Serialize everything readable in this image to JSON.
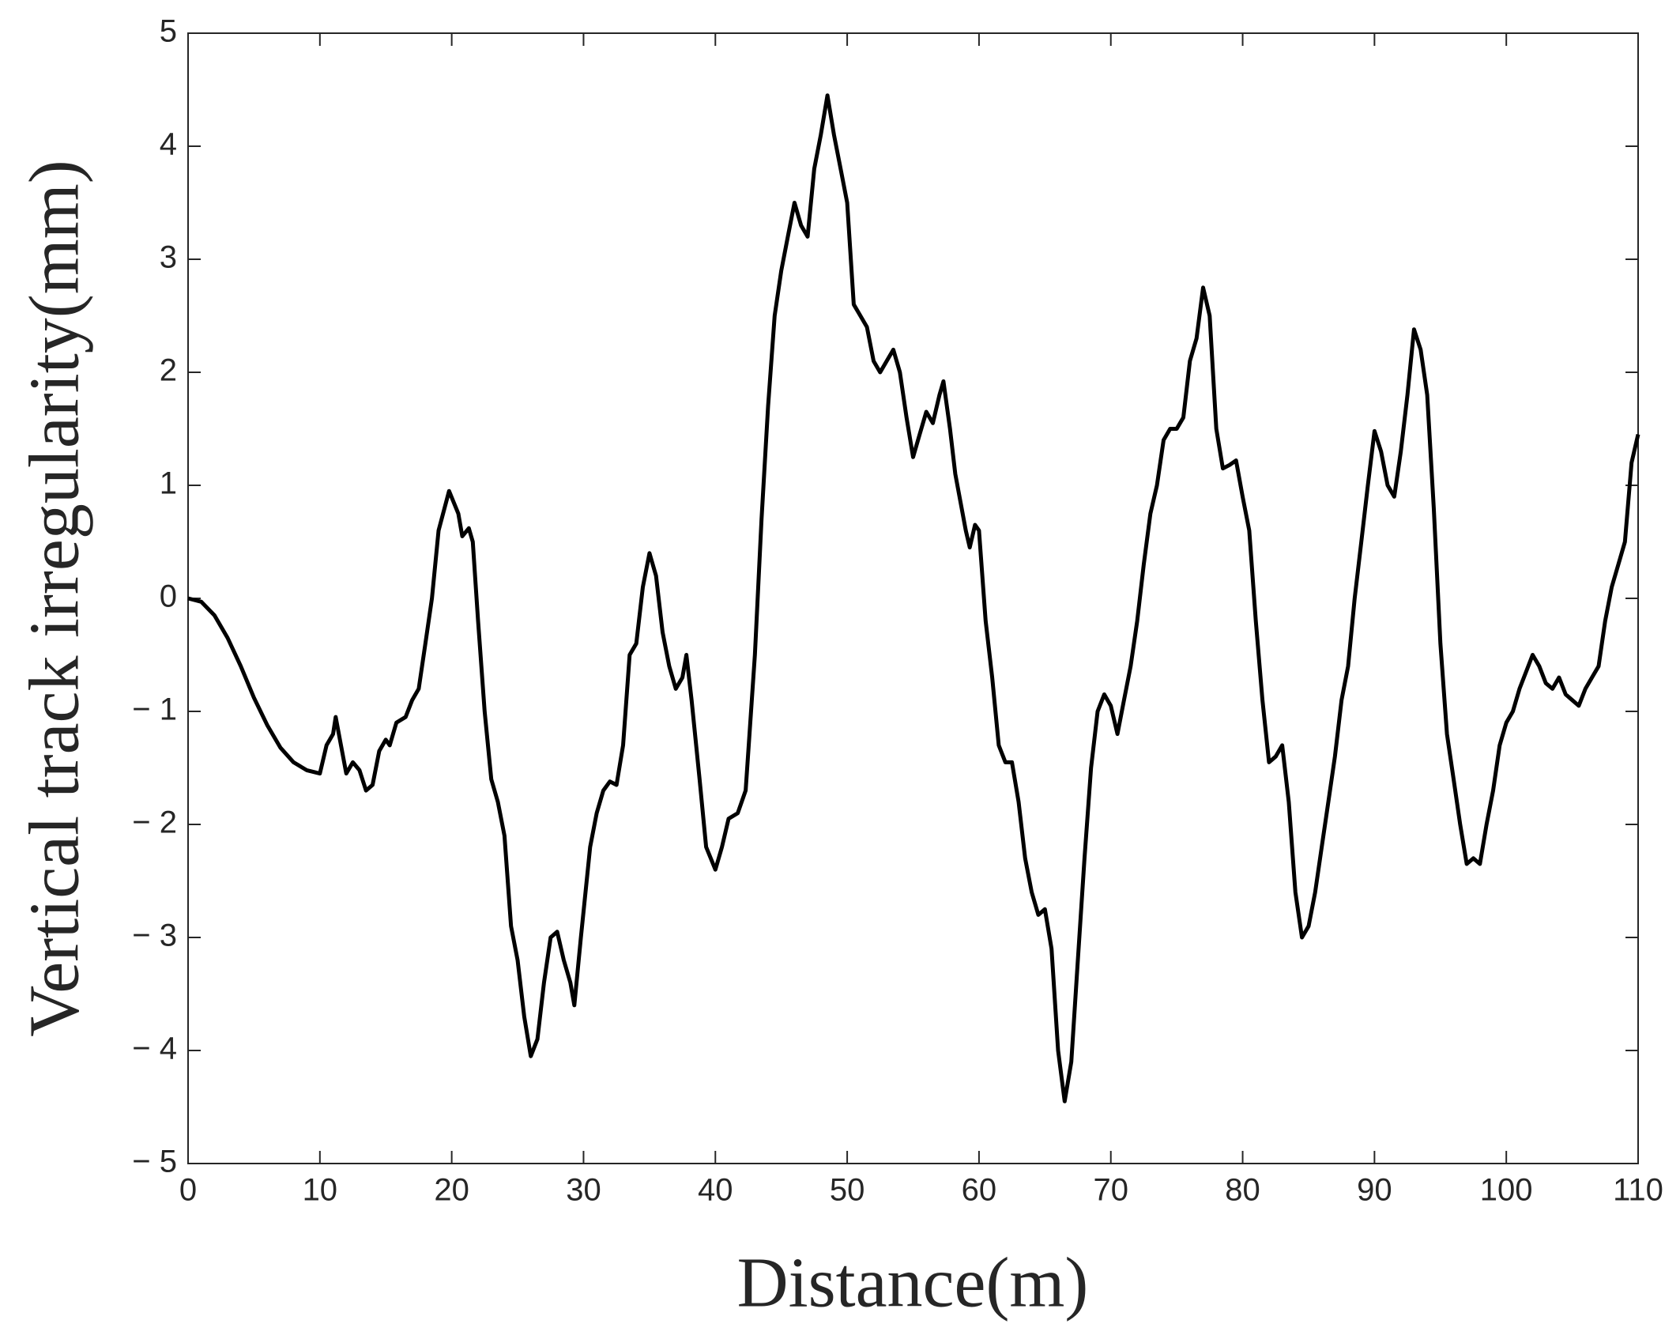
{
  "chart_data": {
    "type": "line",
    "xlabel": "Distance(m)",
    "ylabel": "Vertical track irregularity(mm)",
    "x": [
      0,
      1,
      2,
      3,
      4,
      5,
      6,
      7,
      8,
      9,
      10,
      10.5,
      11,
      11.2,
      11.6,
      12,
      12.5,
      13,
      13.5,
      14,
      14.5,
      15,
      15.3,
      15.8,
      16.5,
      17,
      17.5,
      18,
      18.5,
      19,
      19.8,
      20.5,
      20.8,
      21.3,
      21.6,
      22,
      22.5,
      23,
      23.5,
      24,
      24.5,
      25,
      25.5,
      26,
      26.5,
      27,
      27.5,
      28,
      28.5,
      29,
      29.3,
      29.8,
      30.5,
      31,
      31.5,
      32,
      32.5,
      33,
      33.5,
      34,
      34.5,
      35,
      35.5,
      36,
      36.5,
      37,
      37.5,
      37.8,
      38.2,
      38.8,
      39.3,
      40,
      40.5,
      41,
      41.7,
      42.3,
      43,
      43.5,
      44,
      44.5,
      45,
      45.5,
      46,
      46.5,
      47,
      47.5,
      48,
      48.5,
      49,
      49.5,
      50,
      50.5,
      51,
      51.5,
      52,
      52.5,
      53,
      53.5,
      54,
      54.5,
      55,
      55.5,
      56,
      56.5,
      57,
      57.3,
      57.8,
      58.2,
      59,
      59.3,
      59.7,
      60,
      60.5,
      61,
      61.5,
      62,
      62.5,
      63,
      63.5,
      64,
      64.5,
      65,
      65.5,
      66,
      66.5,
      67,
      67.5,
      68,
      68.5,
      69,
      69.5,
      70,
      70.5,
      71,
      71.5,
      72,
      72.5,
      73,
      73.5,
      74,
      74.5,
      75,
      75.5,
      76,
      76.5,
      77,
      77.5,
      78,
      78.5,
      79,
      79.5,
      80,
      80.5,
      81,
      81.5,
      82,
      82.5,
      83,
      83.5,
      84,
      84.5,
      85,
      85.5,
      86,
      86.5,
      87,
      87.5,
      88,
      88.5,
      89,
      89.5,
      90,
      90.5,
      91,
      91.5,
      92,
      92.5,
      93,
      93.5,
      94,
      94.5,
      95,
      95.5,
      96,
      96.5,
      97,
      97.5,
      98,
      98.5,
      99,
      99.5,
      100,
      100.5,
      101,
      101.5,
      102,
      102.5,
      103,
      103.5,
      104,
      104.5,
      105,
      105.5,
      106,
      106.5,
      107,
      107.5,
      108,
      108.5,
      109,
      109.5,
      110
    ],
    "series": [
      {
        "color": "#000000",
        "values": [
          0,
          -0.03,
          -0.15,
          -0.35,
          -0.6,
          -0.88,
          -1.12,
          -1.32,
          -1.45,
          -1.52,
          -1.55,
          -1.3,
          -1.2,
          -1.05,
          -1.3,
          -1.55,
          -1.45,
          -1.52,
          -1.7,
          -1.65,
          -1.35,
          -1.25,
          -1.3,
          -1.1,
          -1.05,
          -0.9,
          -0.8,
          -0.4,
          0,
          0.6,
          0.95,
          0.75,
          0.55,
          0.62,
          0.5,
          -0.2,
          -1.0,
          -1.6,
          -1.8,
          -2.1,
          -2.9,
          -3.2,
          -3.7,
          -4.05,
          -3.9,
          -3.4,
          -3.0,
          -2.95,
          -3.2,
          -3.4,
          -3.6,
          -3.0,
          -2.2,
          -1.9,
          -1.7,
          -1.62,
          -1.65,
          -1.3,
          -0.5,
          -0.4,
          0.1,
          0.4,
          0.2,
          -0.3,
          -0.6,
          -0.8,
          -0.7,
          -0.5,
          -0.9,
          -1.6,
          -2.2,
          -2.4,
          -2.2,
          -1.95,
          -1.9,
          -1.7,
          -0.5,
          0.7,
          1.7,
          2.5,
          2.9,
          3.2,
          3.5,
          3.3,
          3.2,
          3.8,
          4.1,
          4.45,
          4.1,
          3.8,
          3.5,
          2.6,
          2.5,
          2.4,
          2.1,
          2.0,
          2.1,
          2.2,
          2.0,
          1.6,
          1.25,
          1.45,
          1.65,
          1.55,
          1.8,
          1.92,
          1.5,
          1.1,
          0.6,
          0.45,
          0.65,
          0.6,
          -0.2,
          -0.7,
          -1.3,
          -1.45,
          -1.45,
          -1.8,
          -2.3,
          -2.6,
          -2.8,
          -2.75,
          -3.1,
          -4.0,
          -4.45,
          -4.1,
          -3.2,
          -2.3,
          -1.5,
          -1.0,
          -0.85,
          -0.95,
          -1.2,
          -0.9,
          -0.6,
          -0.2,
          0.3,
          0.75,
          1.0,
          1.4,
          1.5,
          1.5,
          1.6,
          2.1,
          2.3,
          2.75,
          2.5,
          1.5,
          1.15,
          1.18,
          1.22,
          0.9,
          0.6,
          -0.2,
          -0.9,
          -1.45,
          -1.4,
          -1.3,
          -1.8,
          -2.6,
          -3.0,
          -2.9,
          -2.6,
          -2.2,
          -1.8,
          -1.4,
          -0.9,
          -0.6,
          0,
          0.5,
          1.0,
          1.48,
          1.3,
          1.0,
          0.9,
          1.3,
          1.8,
          2.38,
          2.2,
          1.8,
          0.8,
          -0.4,
          -1.2,
          -1.6,
          -2.0,
          -2.35,
          -2.3,
          -2.35,
          -2.0,
          -1.7,
          -1.3,
          -1.1,
          -1.0,
          -0.8,
          -0.65,
          -0.5,
          -0.6,
          -0.75,
          -0.8,
          -0.7,
          -0.85,
          -0.9,
          -0.95,
          -0.8,
          -0.7,
          -0.6,
          -0.2,
          0.1,
          0.3,
          0.5,
          1.2,
          1.45
        ]
      }
    ],
    "xlim": [
      0,
      110
    ],
    "ylim": [
      -5,
      5
    ],
    "xticks": [
      0,
      10,
      20,
      30,
      40,
      50,
      60,
      70,
      80,
      90,
      100,
      110
    ],
    "yticks": [
      {
        "value": -5,
        "label": "− 5"
      },
      {
        "value": -4,
        "label": "− 4"
      },
      {
        "value": -3,
        "label": "− 3"
      },
      {
        "value": -2,
        "label": "− 2"
      },
      {
        "value": -1,
        "label": "− 1"
      },
      0,
      1,
      2,
      3,
      4,
      5
    ],
    "grid": false
  }
}
